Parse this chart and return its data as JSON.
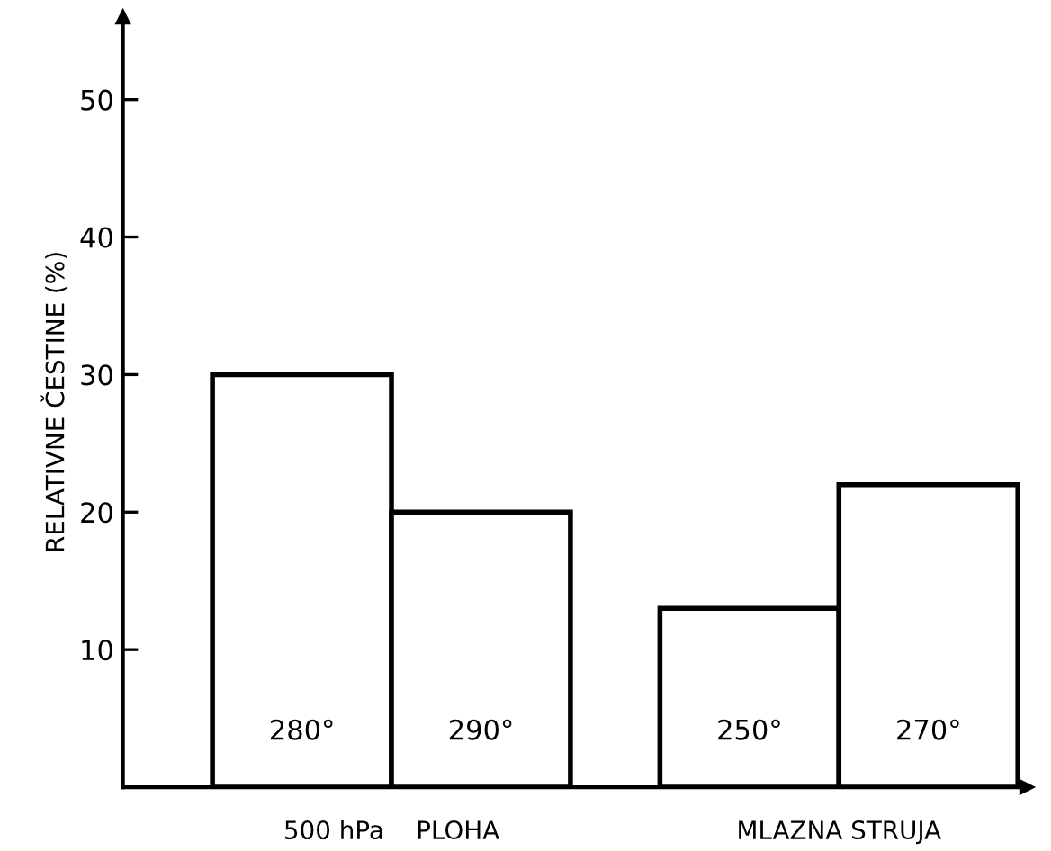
{
  "chart_data": {
    "type": "bar",
    "categories": [
      "280°",
      "290°",
      null,
      "250°",
      "270°"
    ],
    "values": [
      30,
      20,
      null,
      13,
      22
    ],
    "color": "#ffffff",
    "ylabel": "RELATIVNE ČESTINE (%)",
    "ylim": [
      0,
      56
    ],
    "yticks": [
      10,
      20,
      30,
      40,
      50
    ],
    "annotations": [
      "500 hPa    PLOHA",
      "MLAZNA STRUJA"
    ],
    "grid": false,
    "legend": false
  }
}
